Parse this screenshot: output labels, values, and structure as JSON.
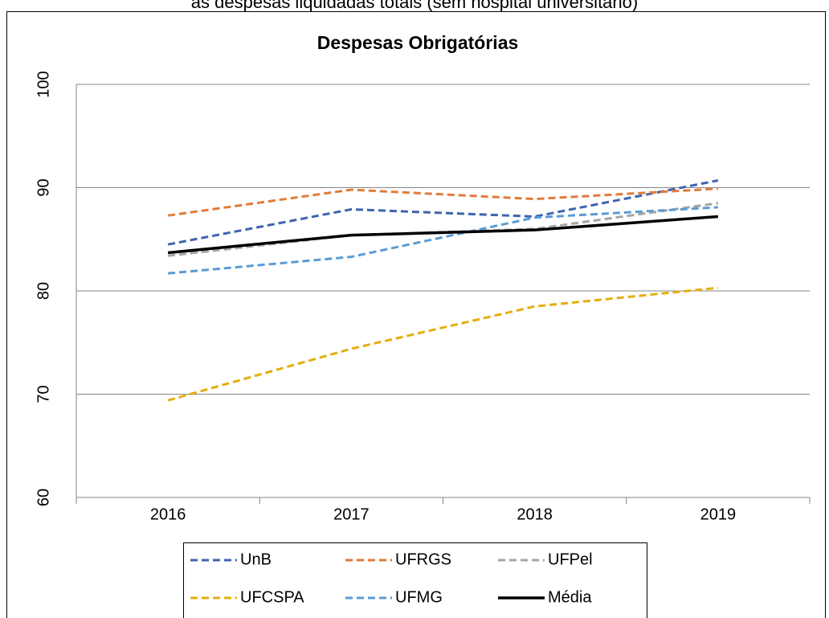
{
  "chart_data": {
    "type": "line",
    "subtitle": "as despesas liquidadas totais (sem hospital universitário)",
    "title": "Despesas Obrigatórias",
    "categories": [
      "2016",
      "2017",
      "2018",
      "2019"
    ],
    "ylim": [
      60,
      100
    ],
    "yticks": [
      60,
      70,
      80,
      90,
      100
    ],
    "grid": true,
    "series": [
      {
        "name": "UnB",
        "color": "#3f64ad",
        "style": "dashed",
        "values": [
          84.5,
          87.9,
          87.2,
          90.7
        ]
      },
      {
        "name": "UFRGS",
        "color": "#e07b39",
        "style": "dashed",
        "values": [
          87.3,
          89.8,
          88.9,
          89.9
        ]
      },
      {
        "name": "UFPel",
        "color": "#a5a5a5",
        "style": "dashed",
        "values": [
          83.4,
          85.4,
          86.0,
          88.5
        ]
      },
      {
        "name": "UFCSPA",
        "color": "#e3ae0f",
        "style": "dashed",
        "values": [
          69.4,
          74.4,
          78.5,
          80.3
        ]
      },
      {
        "name": "UFMG",
        "color": "#5b9bd5",
        "style": "dashed",
        "values": [
          81.7,
          83.3,
          87.1,
          88.1
        ]
      },
      {
        "name": "Média",
        "color": "#000000",
        "style": "solid",
        "values": [
          83.7,
          85.4,
          85.9,
          87.2
        ]
      }
    ]
  }
}
